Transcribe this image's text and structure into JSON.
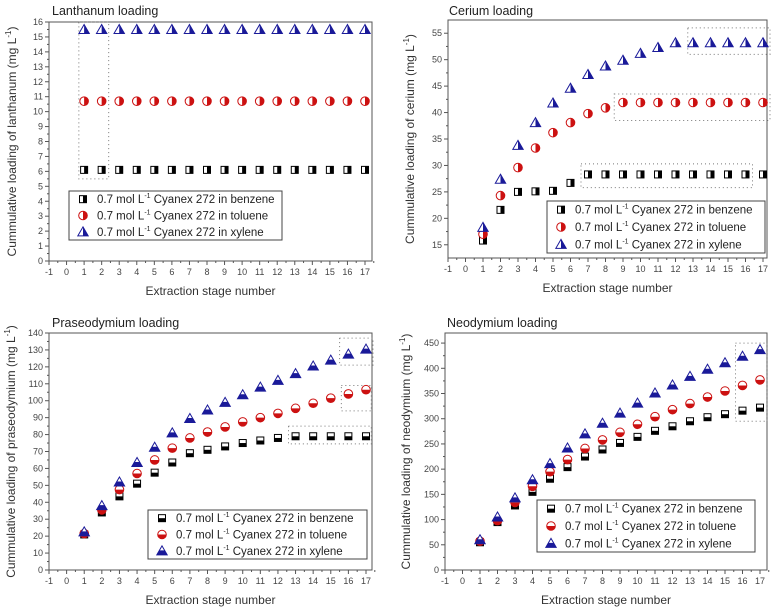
{
  "figure": {
    "series_colors": {
      "benzene": "#000000",
      "toluene": "#cc1111",
      "xylene": "#1a1a99"
    },
    "legend_labels": [
      {
        "prefix": "0.7 mol L",
        "sup": "-1",
        "suffix": " Cyanex 272 in benzene",
        "key": "benzene",
        "marker": "square"
      },
      {
        "prefix": "0.7 mol L",
        "sup": "-1",
        "suffix": " Cyanex 272 in toluene",
        "key": "toluene",
        "marker": "circle"
      },
      {
        "prefix": "0.7 mol L",
        "sup": "-1",
        "suffix": " Cyanex 272 in xylene",
        "key": "xylene",
        "marker": "triangle"
      }
    ]
  },
  "chart_data": [
    {
      "type": "scatter",
      "title": "Lanthanum loading",
      "xlabel": "Extraction stage number",
      "ylabel": "Cummulative loading of lanthanum  (mg L",
      "ylabel_sup": "-1",
      "ylabel_end": ")",
      "xlim": [
        -1,
        17.4
      ],
      "ylim": [
        0,
        16
      ],
      "xticks": [
        -1,
        0,
        1,
        2,
        3,
        4,
        5,
        6,
        7,
        8,
        9,
        10,
        11,
        12,
        13,
        14,
        15,
        16,
        17
      ],
      "yticks": [
        0,
        1,
        2,
        3,
        4,
        5,
        6,
        7,
        8,
        9,
        10,
        11,
        12,
        13,
        14,
        15,
        16
      ],
      "legend_position": "bottom-left",
      "x": [
        1,
        2,
        3,
        4,
        5,
        6,
        7,
        8,
        9,
        10,
        11,
        12,
        13,
        14,
        15,
        16,
        17
      ],
      "series": [
        {
          "name": "0.7 mol L-1 Cyanex 272 in benzene",
          "key": "benzene",
          "values": [
            6.1,
            6.1,
            6.1,
            6.1,
            6.1,
            6.1,
            6.1,
            6.1,
            6.1,
            6.1,
            6.1,
            6.1,
            6.1,
            6.1,
            6.1,
            6.1,
            6.1
          ]
        },
        {
          "name": "0.7 mol L-1 Cyanex 272 in toluene",
          "key": "toluene",
          "values": [
            10.7,
            10.7,
            10.7,
            10.7,
            10.7,
            10.7,
            10.7,
            10.7,
            10.7,
            10.7,
            10.7,
            10.7,
            10.7,
            10.7,
            10.7,
            10.7,
            10.7
          ]
        },
        {
          "name": "0.7 mol L-1 Cyanex 272 in xylene",
          "key": "xylene",
          "values": [
            15.5,
            15.5,
            15.5,
            15.5,
            15.5,
            15.5,
            15.5,
            15.5,
            15.5,
            15.5,
            15.5,
            15.5,
            15.5,
            15.5,
            15.5,
            15.5,
            15.5
          ]
        }
      ],
      "annotations": [
        {
          "type": "dotted-box",
          "x_range": [
            0.7,
            2.4
          ],
          "y_range": [
            5.5,
            16
          ],
          "note": "stages 1-2 highlighted"
        }
      ]
    },
    {
      "type": "scatter",
      "title": "Cerium loading",
      "xlabel": "Extraction stage number",
      "ylabel": "Cummulative loading of cerium  (mg L",
      "ylabel_sup": "-1",
      "ylabel_end": ")",
      "xlim": [
        -1,
        17.4
      ],
      "ylim": [
        12.5,
        57.5
      ],
      "xticks": [
        -1,
        0,
        1,
        2,
        3,
        4,
        5,
        6,
        7,
        8,
        9,
        10,
        11,
        12,
        13,
        14,
        15,
        16,
        17
      ],
      "yticks": [
        15,
        20,
        25,
        30,
        35,
        40,
        45,
        50,
        55
      ],
      "legend_position": "bottom-right",
      "x": [
        1,
        2,
        3,
        4,
        5,
        6,
        7,
        8,
        9,
        10,
        11,
        12,
        13,
        14,
        15,
        16,
        17
      ],
      "series": [
        {
          "name": "0.7 mol L-1 Cyanex 272 in benzene",
          "key": "benzene",
          "values": [
            15.8,
            21.6,
            25.0,
            25.1,
            25.2,
            26.7,
            28.3,
            28.3,
            28.3,
            28.3,
            28.3,
            28.3,
            28.3,
            28.3,
            28.3,
            28.3,
            28.3
          ]
        },
        {
          "name": "0.7 mol L-1 Cyanex 272 in toluene",
          "key": "toluene",
          "values": [
            17.0,
            24.3,
            29.6,
            33.3,
            36.2,
            38.1,
            39.8,
            40.9,
            41.9,
            41.9,
            41.9,
            41.9,
            41.9,
            41.9,
            41.9,
            41.9,
            41.9
          ]
        },
        {
          "name": "0.7 mol L-1 Cyanex 272 in xylene",
          "key": "xylene",
          "values": [
            18.3,
            27.4,
            33.8,
            38.1,
            41.8,
            44.6,
            47.2,
            48.8,
            49.9,
            51.2,
            52.3,
            53.2,
            53.2,
            53.2,
            53.2,
            53.2,
            53.2
          ]
        }
      ],
      "annotations": [
        {
          "type": "dotted-box",
          "x_range": [
            12.7,
            17.4
          ],
          "y_range": [
            51,
            56
          ],
          "note": "xylene plateau"
        },
        {
          "type": "dotted-box",
          "x_range": [
            8.5,
            17.4
          ],
          "y_range": [
            38.5,
            43.5
          ],
          "note": "toluene plateau"
        },
        {
          "type": "dotted-box",
          "x_range": [
            6.6,
            16.4
          ],
          "y_range": [
            25.8,
            30.3
          ],
          "note": "benzene plateau"
        }
      ]
    },
    {
      "type": "scatter",
      "title": "Praseodymium loading",
      "xlabel": "Extraction stage number",
      "ylabel": "Cummulative loading of praseodymium  (mg L",
      "ylabel_sup": "-1",
      "ylabel_end": ")",
      "xlim": [
        -1,
        17.4
      ],
      "ylim": [
        0,
        140
      ],
      "xticks": [
        -1,
        0,
        1,
        2,
        3,
        4,
        5,
        6,
        7,
        8,
        9,
        10,
        11,
        12,
        13,
        14,
        15,
        16,
        17
      ],
      "yticks": [
        0,
        10,
        20,
        30,
        40,
        50,
        60,
        70,
        80,
        90,
        100,
        110,
        120,
        130,
        140
      ],
      "legend_position": "bottom-right",
      "x": [
        1,
        2,
        3,
        4,
        5,
        6,
        7,
        8,
        9,
        10,
        11,
        12,
        13,
        14,
        15,
        16,
        17
      ],
      "series": [
        {
          "name": "0.7 mol L-1 Cyanex 272 in benzene",
          "key": "benzene",
          "values": [
            21,
            34,
            43.5,
            51,
            57.5,
            63.5,
            69,
            71,
            73,
            75,
            76.5,
            78,
            79,
            79,
            79,
            79,
            79
          ]
        },
        {
          "name": "0.7 mol L-1 Cyanex 272 in toluene",
          "key": "toluene",
          "values": [
            21.5,
            35.5,
            47.5,
            57,
            65,
            72,
            78,
            81.5,
            84.5,
            87.5,
            90,
            92.5,
            95.5,
            98.5,
            101.5,
            104,
            106.5
          ]
        },
        {
          "name": "0.7 mol L-1 Cyanex 272 in xylene",
          "key": "xylene",
          "values": [
            22.5,
            38,
            52,
            63.5,
            72.5,
            81,
            89.5,
            94.5,
            99,
            103.5,
            108,
            112,
            116,
            120.5,
            124,
            127.5,
            130.5
          ]
        }
      ],
      "annotations": [
        {
          "type": "dotted-box",
          "x_range": [
            15.5,
            17.4
          ],
          "y_range": [
            121,
            137
          ],
          "note": "xylene"
        },
        {
          "type": "dotted-box",
          "x_range": [
            15.6,
            17.3
          ],
          "y_range": [
            94,
            109
          ],
          "note": "toluene"
        },
        {
          "type": "dotted-box",
          "x_range": [
            12.6,
            17.3
          ],
          "y_range": [
            74.5,
            85
          ],
          "note": "benzene plateau"
        }
      ]
    },
    {
      "type": "scatter",
      "title": "Neodymium loading",
      "xlabel": "Extraction stage number",
      "ylabel": "Cummulative loading of neodymium  (mg L",
      "ylabel_sup": "-1",
      "ylabel_end": ")",
      "xlim": [
        -1,
        17.4
      ],
      "ylim": [
        0,
        470
      ],
      "xticks": [
        -1,
        0,
        1,
        2,
        3,
        4,
        5,
        6,
        7,
        8,
        9,
        10,
        11,
        12,
        13,
        14,
        15,
        16,
        17
      ],
      "yticks": [
        0,
        50,
        100,
        150,
        200,
        250,
        300,
        350,
        400,
        450
      ],
      "legend_position": "bottom-right",
      "x": [
        1,
        2,
        3,
        4,
        5,
        6,
        7,
        8,
        9,
        10,
        11,
        12,
        13,
        14,
        15,
        16,
        17
      ],
      "series": [
        {
          "name": "0.7 mol L-1 Cyanex 272 in benzene",
          "key": "benzene",
          "values": [
            55,
            95,
            128,
            155,
            181,
            204,
            225,
            239,
            252,
            264,
            276,
            285,
            295,
            303,
            309,
            316,
            322
          ]
        },
        {
          "name": "0.7 mol L-1 Cyanex 272 in toluene",
          "key": "toluene",
          "values": [
            57,
            98,
            134,
            166,
            195,
            219,
            241,
            258,
            273,
            289,
            304,
            318,
            330,
            343,
            355,
            366,
            377
          ]
        },
        {
          "name": "0.7 mol L-1 Cyanex 272 in xylene",
          "key": "xylene",
          "values": [
            60,
            105,
            143,
            179,
            211,
            242,
            270,
            291,
            311,
            331,
            351,
            367,
            384,
            398,
            411,
            424,
            437
          ]
        }
      ],
      "annotations": [
        {
          "type": "dotted-box",
          "x_range": [
            15.6,
            17.4
          ],
          "y_range": [
            295,
            450
          ],
          "note": "stages 16-17 highlighted"
        }
      ]
    }
  ]
}
